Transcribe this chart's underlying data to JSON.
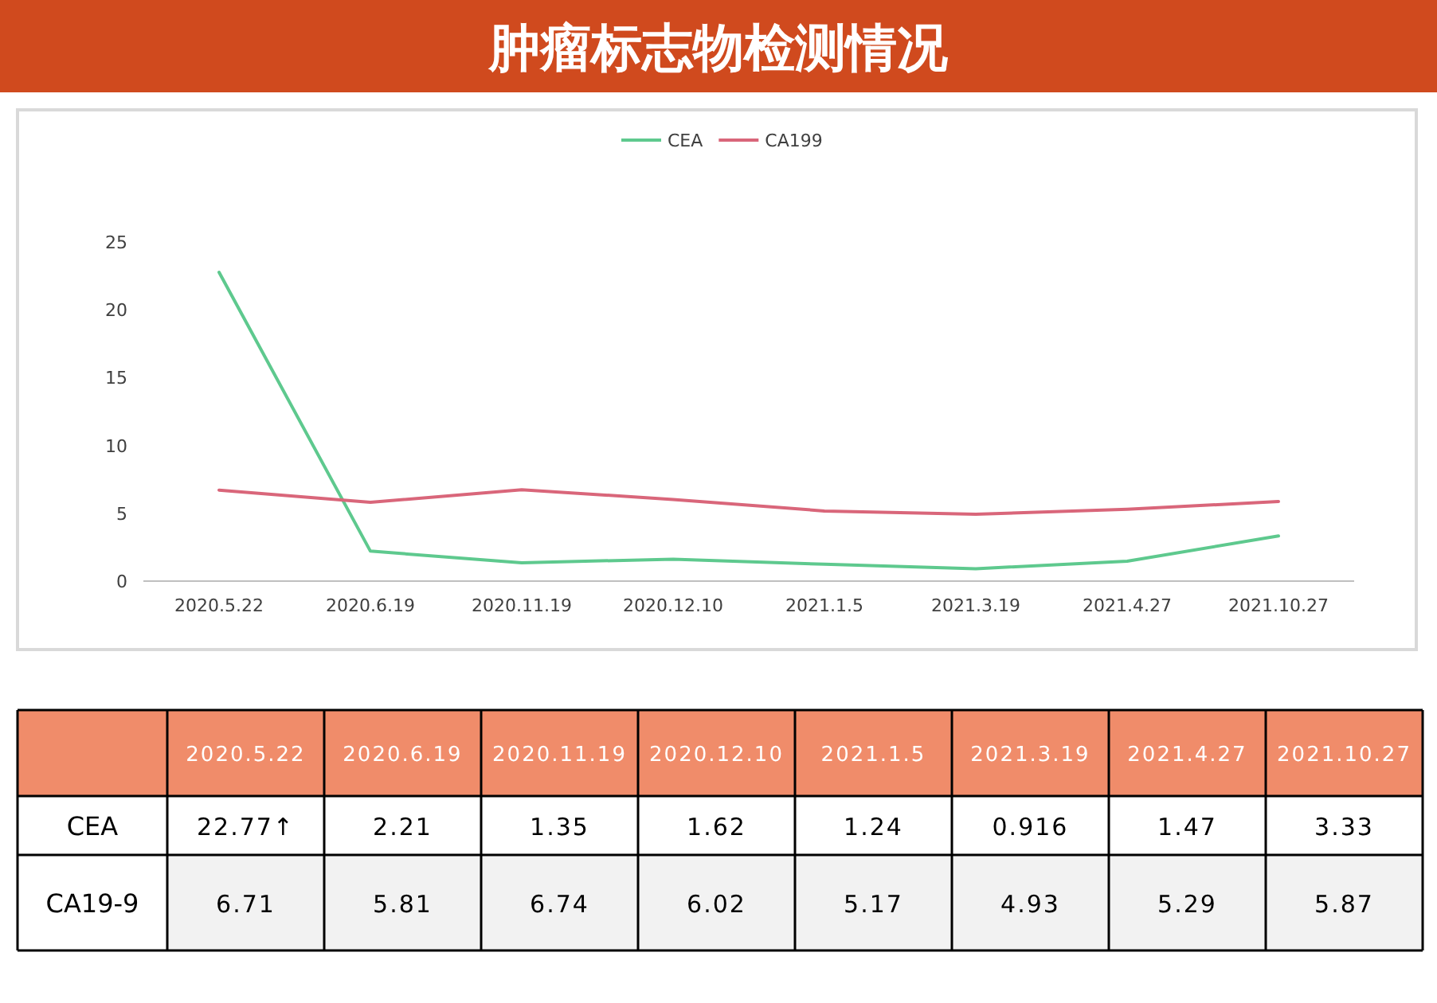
{
  "chart_data": {
    "type": "line",
    "title": "肿瘤标志物检测情况",
    "categories": [
      "2020.5.22",
      "2020.6.19",
      "2020.11.19",
      "2020.12.10",
      "2021.1.5",
      "2021.3.19",
      "2021.4.27",
      "2021.10.27"
    ],
    "series": [
      {
        "name": "CEA",
        "color": "#5ec98e",
        "values": [
          22.77,
          2.21,
          1.35,
          1.62,
          1.24,
          0.916,
          1.47,
          3.33
        ],
        "value_labels": [
          "22.77↑",
          "2.21",
          "1.35",
          "1.62",
          "1.24",
          "0.916",
          "1.47",
          "3.33"
        ]
      },
      {
        "name": "CA199",
        "color": "#d9667a",
        "values": [
          6.71,
          5.81,
          6.74,
          6.02,
          5.17,
          4.93,
          5.29,
          5.87
        ],
        "value_labels": [
          "6.71",
          "5.81",
          "6.74",
          "6.02",
          "5.17",
          "4.93",
          "5.29",
          "5.87"
        ]
      }
    ],
    "annotations": [
      "CEA",
      "CA19-9"
    ],
    "ylim": [
      0,
      25
    ],
    "yticks": [
      0,
      5,
      10,
      15,
      20,
      25
    ],
    "legend": "top",
    "grid": false,
    "marker": "none",
    "line_style": "solid"
  }
}
